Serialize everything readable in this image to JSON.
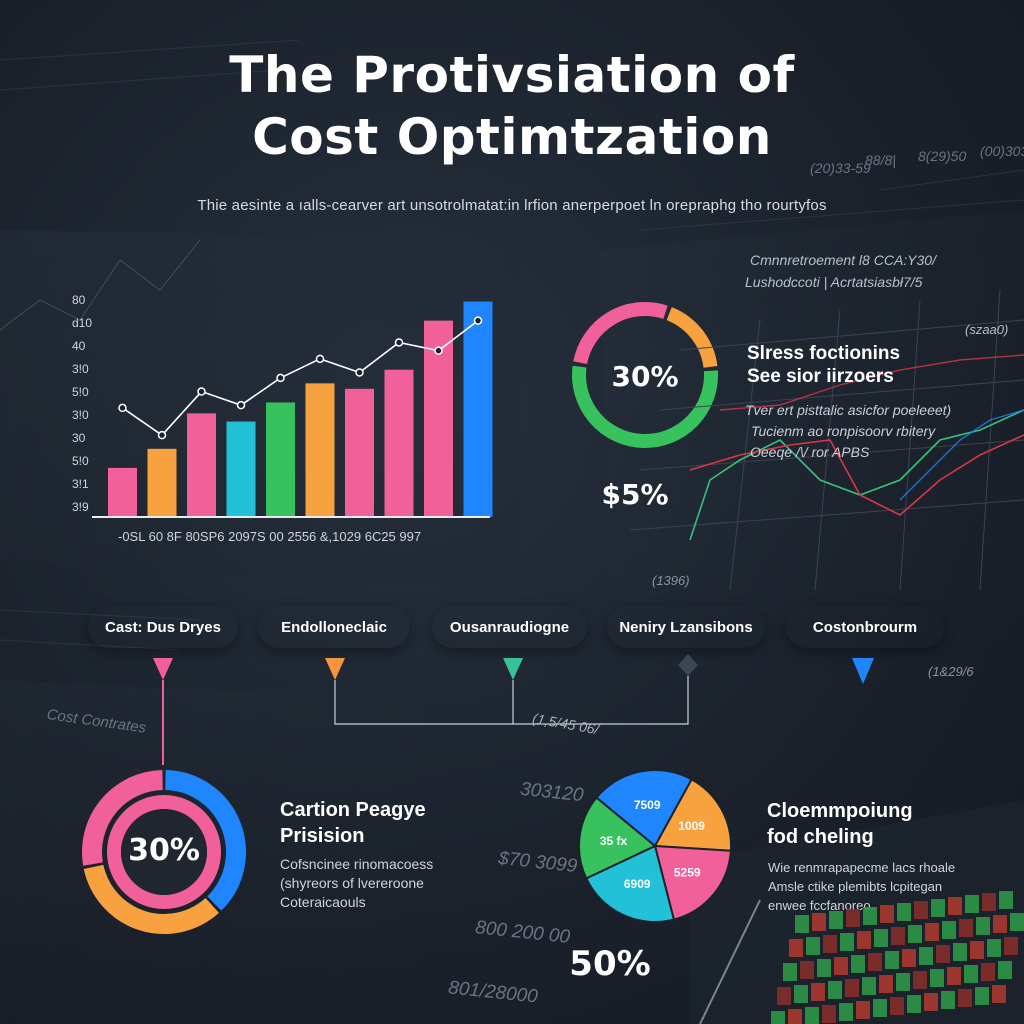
{
  "title_line1": "The Protivsiation of",
  "title_line2": "Cost Optimtzation",
  "subtitle": "Thie aesinte a ıalls-cearver art unsotrolmatat:in lrfion anerperpoet ln orepraphg tho rourtyfos",
  "chart_data": [
    {
      "type": "bar",
      "categories": [
        "",
        "",
        "",
        "",
        "",
        "",
        "",
        "",
        "",
        ""
      ],
      "values": [
        18,
        25,
        38,
        35,
        42,
        49,
        47,
        54,
        72,
        79
      ],
      "colors": [
        "#f2609a",
        "#f7a23f",
        "#f2609a",
        "#22c1d8",
        "#37c25d",
        "#f7a23f",
        "#f2609a",
        "#f2609a",
        "#f2609a",
        "#1f86ff"
      ],
      "ylim": [
        0,
        88
      ],
      "yticks": [
        "80",
        "d10",
        "40",
        "3!0",
        "5!0",
        "3!0",
        "30",
        "5!0",
        "3!1",
        "3!9"
      ],
      "xtick_text": "-0SL 60  8F  80SP6  2097S  00  2556  &,1029  6C25  997",
      "overlay_line": [
        40,
        30,
        46,
        41,
        51,
        58,
        53,
        64,
        61,
        72
      ],
      "grid": false,
      "legend": "none"
    },
    {
      "type": "pie",
      "variant": "donut",
      "center_label": "30%",
      "below_label": "$5%",
      "values": [
        28,
        18,
        54
      ],
      "colors": [
        "#f2609a",
        "#f7a23f",
        "#37c25d"
      ]
    },
    {
      "type": "pie",
      "variant": "donut",
      "center_label": "30%",
      "values": [
        38,
        34,
        28
      ],
      "colors": [
        "#1f86ff",
        "#f7a23f",
        "#f2609a"
      ]
    },
    {
      "type": "pie",
      "labels": [
        "7509",
        "1009",
        "5259",
        "6909",
        "35 fx"
      ],
      "values": [
        22,
        18,
        20,
        22,
        18
      ],
      "colors": [
        "#1f86ff",
        "#f7a23f",
        "#f2609a",
        "#22c1d8",
        "#37c25d"
      ],
      "below_label": "50%"
    }
  ],
  "right_panel": {
    "label1": "Cmnnretroement l8 CCA:Y30/",
    "label2": "Lushodccoti | Acrtatsiasbł7/5",
    "corner_value": "(szaa0)",
    "heading1": "Slress foctionins",
    "heading2": "See sior iirzoers",
    "text1": "Tver ert pisttalic asicfor poeleeet)",
    "text2": "Tucienm ao ronpisoorv rbitery",
    "text3": "Oeeqe /\\/ ror APBS",
    "bottom_value": "(1396)",
    "side_value": "(1&29/6"
  },
  "pills": [
    {
      "label": "Cast: Dus Dryes",
      "color": "#f2567f"
    },
    {
      "label": "Endolloneclaic",
      "color": "#f7953f"
    },
    {
      "label": "Ousanraudiogne",
      "color": "#37c27a"
    },
    {
      "label": "Neniry Lzansibons",
      "color": "#4b47c8"
    },
    {
      "label": "Costonbrourm",
      "color": "#1f7fe8"
    }
  ],
  "connector_label": "(1,5/45 06/",
  "left_faint_label": "Cost Contrates",
  "block1": {
    "title1": "Cartion Peagye",
    "title2": "Prisision",
    "text1": "Cofsncinee rinomacoess",
    "text2": "(shyreors of lvereroone",
    "text3": "Coteraicaouls"
  },
  "block2": {
    "title1": "Cloemmpoiung",
    "title2": "fod cheling",
    "text1": "Wie renmrapapecme lacs rhoale",
    "text2": "Amsle ctike plemibts lcpitegan",
    "text3": "enwee fccfanoreo."
  },
  "faint_numbers": [
    "303120",
    "$70 3099",
    "800 200 00",
    "801/28000"
  ],
  "top_faint": [
    "(20)33-59",
    "88/8|",
    "8(29)50",
    "(00)3030/"
  ]
}
